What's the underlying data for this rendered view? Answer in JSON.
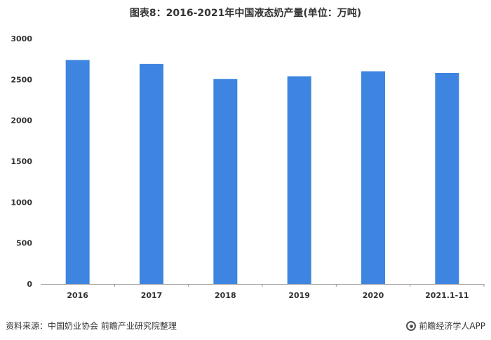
{
  "chart_data": {
    "type": "bar",
    "title": "图表8：2016-2021年中国液态奶产量(单位：万吨)",
    "categories": [
      "2016",
      "2017",
      "2018",
      "2019",
      "2020",
      "2021.1-11"
    ],
    "values": [
      2737,
      2691,
      2505,
      2538,
      2600,
      2580
    ],
    "ylim": [
      0,
      3000
    ],
    "yticks": [
      0,
      500,
      1000,
      1500,
      2000,
      2500,
      3000
    ],
    "xlabel": "",
    "ylabel": "",
    "grid": false,
    "bar_color": "#3d85e0"
  },
  "footer": {
    "source": "资料来源：中国奶业协会 前瞻产业研究院整理",
    "brand": "前瞻经济学人APP"
  },
  "colors": {
    "axis": "#999999",
    "text": "#333333"
  }
}
